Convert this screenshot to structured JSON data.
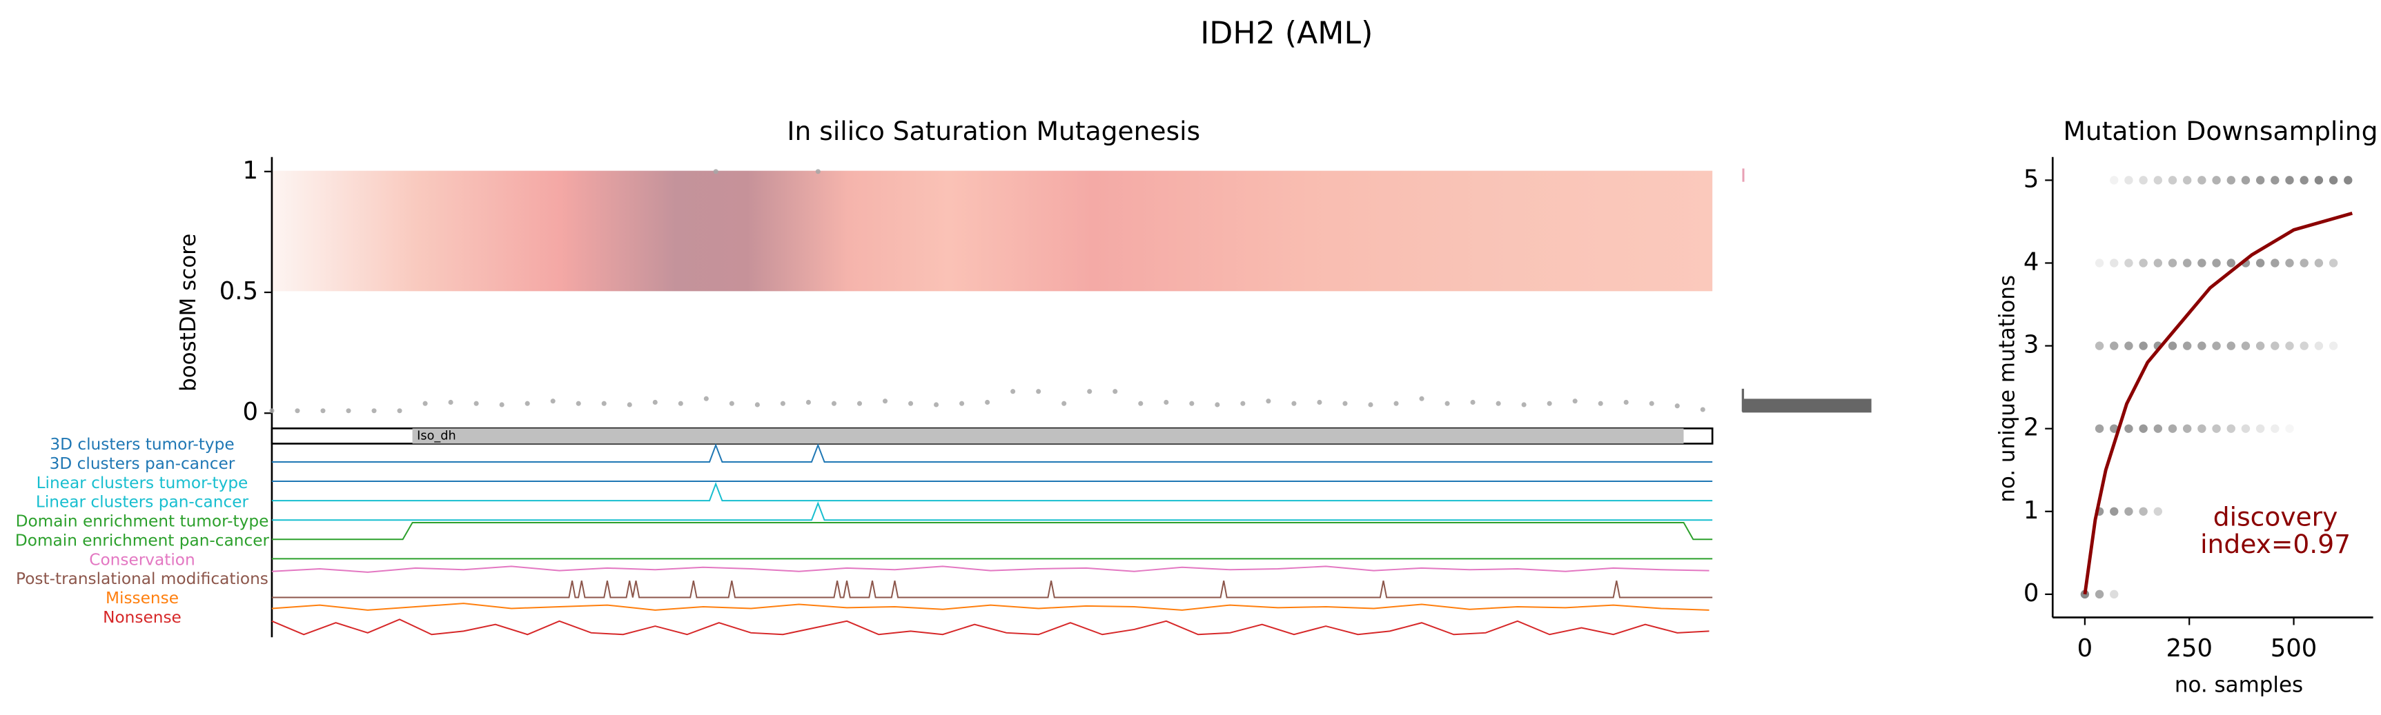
{
  "title": "IDH2 (AML)",
  "chart_data": [
    {
      "type": "scatter",
      "title": "In silico Saturation Mutagenesis",
      "y_label": "boostDM score",
      "xlim": [
        1,
        452
      ],
      "ylim": [
        -0.01,
        1.06
      ],
      "yticks": [
        0,
        0.5,
        1
      ],
      "color": "#a6a6a6",
      "x": [
        1,
        9,
        17,
        25,
        33,
        41,
        49,
        57,
        65,
        73,
        81,
        89,
        97,
        105,
        113,
        121,
        129,
        137,
        145,
        153,
        161,
        169,
        177,
        185,
        193,
        201,
        209,
        217,
        225,
        233,
        241,
        249,
        257,
        265,
        273,
        281,
        289,
        297,
        305,
        313,
        321,
        329,
        337,
        345,
        353,
        361,
        369,
        377,
        385,
        393,
        401,
        409,
        417,
        425,
        433,
        441,
        449,
        140,
        172
      ],
      "values": [
        0.01,
        0.01,
        0.01,
        0.01,
        0.01,
        0.01,
        0.04,
        0.045,
        0.04,
        0.035,
        0.04,
        0.05,
        0.04,
        0.04,
        0.035,
        0.045,
        0.04,
        0.06,
        0.04,
        0.035,
        0.04,
        0.045,
        0.04,
        0.04,
        0.05,
        0.04,
        0.035,
        0.04,
        0.045,
        0.09,
        0.09,
        0.04,
        0.09,
        0.09,
        0.04,
        0.045,
        0.04,
        0.035,
        0.04,
        0.05,
        0.04,
        0.045,
        0.04,
        0.035,
        0.04,
        0.06,
        0.04,
        0.045,
        0.04,
        0.035,
        0.04,
        0.05,
        0.04,
        0.045,
        0.04,
        0.03,
        0.015,
        1,
        1
      ],
      "domains": [
        {
          "name": "Iso_dh",
          "start": 45,
          "end": 443,
          "color": "#c0c0c0"
        }
      ],
      "tracks": [
        {
          "name": "3D clusters tumor-type",
          "color": "#1f77b4",
          "x": [
            1,
            138,
            140,
            142,
            170,
            172,
            174,
            452
          ],
          "values": [
            0,
            0,
            1,
            0,
            0,
            1,
            0,
            0
          ]
        },
        {
          "name": "3D clusters pan-cancer",
          "color": "#1f77b4",
          "x": [
            1,
            452
          ],
          "values": [
            0,
            0
          ]
        },
        {
          "name": "Linear clusters tumor-type",
          "color": "#17becf",
          "x": [
            1,
            138,
            140,
            142,
            452
          ],
          "values": [
            0,
            0,
            1,
            0,
            0
          ]
        },
        {
          "name": "Linear clusters pan-cancer",
          "color": "#17becf",
          "x": [
            1,
            170,
            172,
            174,
            452
          ],
          "values": [
            0,
            0,
            1,
            0,
            0
          ]
        },
        {
          "name": "Domain enrichment tumor-type",
          "color": "#2ca02c",
          "x": [
            1,
            42,
            45,
            443,
            446,
            452
          ],
          "values": [
            0,
            0,
            1,
            1,
            0,
            0
          ]
        },
        {
          "name": "Domain enrichment pan-cancer",
          "color": "#2ca02c",
          "x": [
            1,
            452
          ],
          "values": [
            0,
            0
          ]
        },
        {
          "name": "Conservation",
          "color": "#e377c2",
          "x": [
            1,
            16,
            31,
            46,
            61,
            76,
            91,
            106,
            121,
            136,
            151,
            166,
            181,
            196,
            211,
            226,
            241,
            256,
            271,
            286,
            301,
            316,
            331,
            346,
            361,
            376,
            391,
            406,
            421,
            436,
            451
          ],
          "values": [
            0.4,
            0.55,
            0.35,
            0.6,
            0.5,
            0.7,
            0.45,
            0.6,
            0.5,
            0.65,
            0.55,
            0.4,
            0.6,
            0.5,
            0.7,
            0.45,
            0.55,
            0.6,
            0.4,
            0.65,
            0.5,
            0.55,
            0.7,
            0.45,
            0.6,
            0.5,
            0.55,
            0.4,
            0.6,
            0.5,
            0.45
          ]
        },
        {
          "name": "Post-translational modifications",
          "color": "#8c564b",
          "x": [
            1,
            94,
            95,
            96,
            97,
            98,
            99,
            105,
            106,
            107,
            112,
            113,
            114,
            115,
            116,
            132,
            133,
            134,
            144,
            145,
            146,
            177,
            178,
            179,
            180,
            181,
            182,
            188,
            189,
            190,
            195,
            196,
            197,
            244,
            245,
            246,
            298,
            299,
            300,
            348,
            349,
            350,
            421,
            422,
            423,
            452
          ],
          "values": [
            0,
            0,
            1,
            0,
            0,
            1,
            0,
            0,
            1,
            0,
            0,
            1,
            0,
            1,
            0,
            0,
            1,
            0,
            0,
            1,
            0,
            0,
            1,
            0,
            0,
            1,
            0,
            0,
            1,
            0,
            0,
            1,
            0,
            0,
            1,
            0,
            0,
            1,
            0,
            0,
            1,
            0,
            0,
            1,
            0,
            0
          ]
        },
        {
          "name": "Missense",
          "color": "#ff7f0e",
          "x": [
            1,
            16,
            31,
            46,
            61,
            76,
            91,
            106,
            121,
            136,
            151,
            166,
            181,
            196,
            211,
            226,
            241,
            256,
            271,
            286,
            301,
            316,
            331,
            346,
            361,
            376,
            391,
            406,
            421,
            436,
            451
          ],
          "values": [
            0.5,
            0.7,
            0.4,
            0.6,
            0.8,
            0.5,
            0.6,
            0.7,
            0.4,
            0.6,
            0.5,
            0.75,
            0.55,
            0.6,
            0.45,
            0.7,
            0.5,
            0.65,
            0.6,
            0.4,
            0.7,
            0.55,
            0.6,
            0.5,
            0.75,
            0.45,
            0.6,
            0.55,
            0.7,
            0.5,
            0.4
          ]
        },
        {
          "name": "Nonsense",
          "color": "#d62728",
          "x": [
            1,
            11,
            21,
            31,
            41,
            51,
            61,
            71,
            81,
            91,
            101,
            111,
            121,
            131,
            141,
            151,
            161,
            171,
            181,
            191,
            201,
            211,
            221,
            231,
            241,
            251,
            261,
            271,
            281,
            291,
            301,
            311,
            321,
            331,
            341,
            351,
            361,
            371,
            381,
            391,
            401,
            411,
            421,
            431,
            441,
            451
          ],
          "values": [
            0.9,
            0.1,
            0.8,
            0.2,
            1,
            0.1,
            0.3,
            0.7,
            0.1,
            0.9,
            0.2,
            0.1,
            0.6,
            0.1,
            0.8,
            0.2,
            0.1,
            0.5,
            0.9,
            0.1,
            0.3,
            0.1,
            0.7,
            0.2,
            0.1,
            0.8,
            0.1,
            0.4,
            0.9,
            0.1,
            0.2,
            0.7,
            0.1,
            0.6,
            0.1,
            0.3,
            0.8,
            0.1,
            0.2,
            0.9,
            0.1,
            0.5,
            0.1,
            0.7,
            0.2,
            0.3
          ]
        }
      ]
    },
    {
      "type": "histogram",
      "orientation": "horizontal",
      "xlim": [
        0,
        450
      ],
      "bins": [
        0.005,
        0.057,
        0.96,
        1.01
      ],
      "counts": [
        449,
        0,
        3
      ],
      "colors": [
        "#666666",
        "#ffffff",
        "#e8a0b4"
      ]
    },
    {
      "type": "scatter",
      "title": "Mutation Downsampling",
      "x_label": "no. samples",
      "y_label": "no. unique mutations",
      "xlim": [
        -77,
        690
      ],
      "ylim": [
        -0.28,
        5.28
      ],
      "xticks": [
        0,
        250,
        500
      ],
      "yticks": [
        0,
        1,
        2,
        3,
        4,
        5
      ],
      "color": "#555555",
      "series": [
        {
          "y": 5,
          "x": [
            70,
            105,
            140,
            175,
            210,
            245,
            280,
            315,
            350,
            385,
            420,
            455,
            490,
            525,
            560,
            595,
            630
          ],
          "alpha": [
            0.08,
            0.15,
            0.2,
            0.25,
            0.3,
            0.35,
            0.4,
            0.45,
            0.5,
            0.55,
            0.6,
            0.6,
            0.65,
            0.65,
            0.7,
            0.7,
            0.7
          ]
        },
        {
          "y": 4,
          "x": [
            35,
            70,
            105,
            140,
            175,
            210,
            245,
            280,
            315,
            350,
            385,
            420,
            455,
            490,
            525,
            560,
            595
          ],
          "alpha": [
            0.1,
            0.15,
            0.25,
            0.35,
            0.4,
            0.45,
            0.5,
            0.55,
            0.55,
            0.6,
            0.6,
            0.6,
            0.55,
            0.5,
            0.45,
            0.4,
            0.3
          ]
        },
        {
          "y": 3,
          "x": [
            35,
            70,
            105,
            140,
            175,
            210,
            245,
            280,
            315,
            350,
            385,
            420,
            455,
            490,
            525,
            560,
            595
          ],
          "alpha": [
            0.4,
            0.5,
            0.55,
            0.6,
            0.6,
            0.6,
            0.55,
            0.55,
            0.5,
            0.5,
            0.45,
            0.4,
            0.35,
            0.3,
            0.25,
            0.15,
            0.1
          ]
        },
        {
          "y": 2,
          "x": [
            35,
            70,
            105,
            140,
            175,
            210,
            245,
            280,
            315,
            350,
            385,
            420,
            455,
            490
          ],
          "alpha": [
            0.55,
            0.6,
            0.6,
            0.6,
            0.55,
            0.5,
            0.45,
            0.4,
            0.35,
            0.3,
            0.2,
            0.15,
            0.1,
            0.05
          ]
        },
        {
          "y": 1,
          "x": [
            35,
            70,
            105,
            140,
            175
          ],
          "alpha": [
            0.6,
            0.6,
            0.5,
            0.4,
            0.25
          ]
        },
        {
          "y": 0,
          "x": [
            0,
            35,
            70
          ],
          "alpha": [
            0.7,
            0.5,
            0.2
          ]
        }
      ],
      "fit": {
        "color": "#8b0000",
        "x": [
          0,
          25,
          50,
          100,
          150,
          200,
          300,
          400,
          500,
          640
        ],
        "values": [
          0,
          0.9,
          1.5,
          2.3,
          2.8,
          3.1,
          3.7,
          4.1,
          4.4,
          4.6
        ]
      },
      "annotation": [
        "discovery",
        "index=0.97"
      ]
    }
  ]
}
